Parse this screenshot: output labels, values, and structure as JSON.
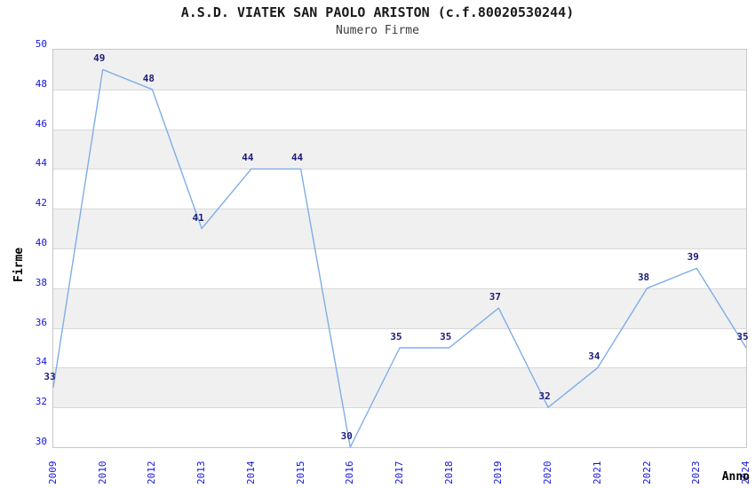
{
  "title": "A.S.D. VIATEK SAN PAOLO ARISTON (c.f.80020530244)",
  "subtitle": "Numero Firme",
  "chart_data": {
    "type": "line",
    "title": "A.S.D. VIATEK SAN PAOLO ARISTON (c.f.80020530244)",
    "subtitle": "Numero Firme",
    "xlabel": "Anno",
    "ylabel": "Firme",
    "categories": [
      "2009",
      "2010",
      "2012",
      "2013",
      "2014",
      "2015",
      "2016",
      "2017",
      "2018",
      "2019",
      "2020",
      "2021",
      "2022",
      "2023",
      "2024"
    ],
    "values": [
      33,
      49,
      48,
      41,
      44,
      44,
      30,
      35,
      35,
      37,
      32,
      34,
      38,
      39,
      35
    ],
    "ylim": [
      30,
      50
    ],
    "ytick_step": 2,
    "yticks": [
      30,
      32,
      34,
      36,
      38,
      40,
      42,
      44,
      46,
      48,
      50
    ],
    "grid": "horizontal-bands",
    "legend": "none",
    "point_labels": "shown",
    "colors": {
      "line": "#7fade8",
      "tick_label": "#1414e0",
      "point_label": "#1c1c78",
      "band": "#f0f0f0",
      "gridline": "#d9d9d9",
      "plot_border": "#c8c8c8",
      "title": "#1a1a1a",
      "subtitle": "#3c3c3c",
      "axis_label": "#000000"
    }
  }
}
